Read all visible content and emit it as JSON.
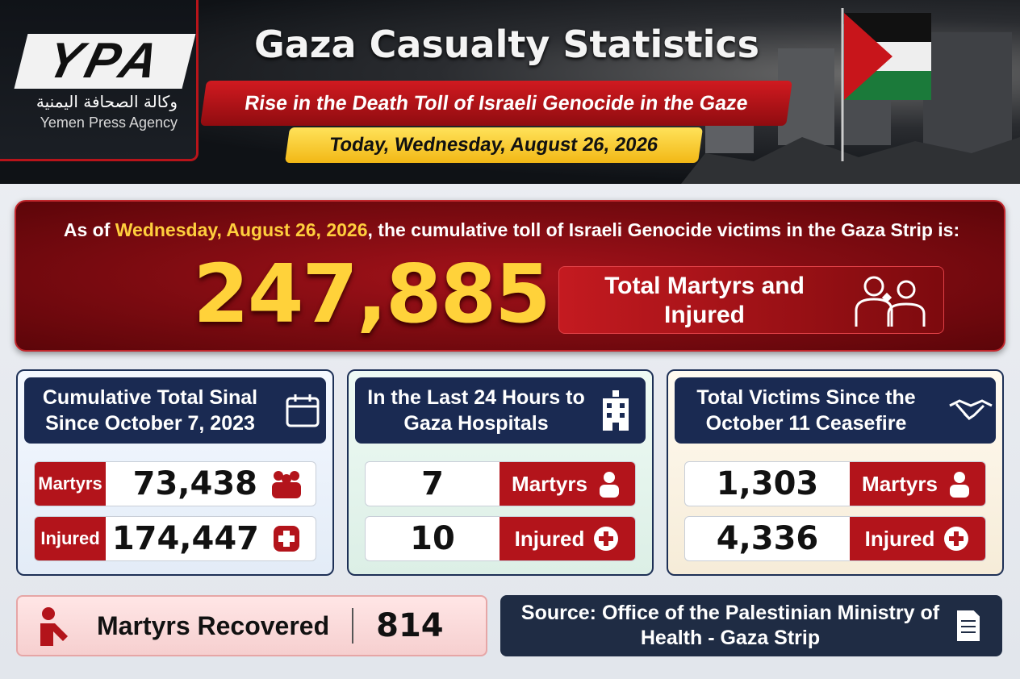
{
  "header": {
    "logo": {
      "mark": "YPA",
      "arabic": "وكالة الصحافة اليمنية",
      "name": "Yemen Press Agency"
    },
    "title": "Gaza Casualty Statistics",
    "subtitle": "Rise in the Death Toll of Israeli Genocide in the Gaze",
    "date": "Today, Wednesday, August 26, 2026"
  },
  "summary": {
    "intro": [
      "As of ",
      "Wednesday, August 26, 2026",
      ", the cumulative toll of Israeli Genocide victims in the Gaza Strip is:"
    ],
    "total": "247,885",
    "label": "Total Martyrs and Injured"
  },
  "panels": [
    {
      "title": "Cumulative Total Sinal Since October 7, 2023",
      "rows": [
        {
          "label": "Martyrs",
          "value": "73,438"
        },
        {
          "label": "Injured",
          "value": "174,447"
        }
      ]
    },
    {
      "title": "In the Last 24 Hours to Gaza Hospitals",
      "rows": [
        {
          "label": "Martyrs",
          "value": "7"
        },
        {
          "label": "Injured",
          "value": "10"
        }
      ]
    },
    {
      "title": "Total Victims Since the October 11 Ceasefire",
      "rows": [
        {
          "label": "Martyrs",
          "value": "1,303"
        },
        {
          "label": "Injured",
          "value": "4,336"
        }
      ]
    }
  ],
  "recovered": {
    "label": "Martyrs Recovered",
    "value": "814"
  },
  "source": "Source: Office of the Palestinian Ministry of Health - Gaza Strip"
}
